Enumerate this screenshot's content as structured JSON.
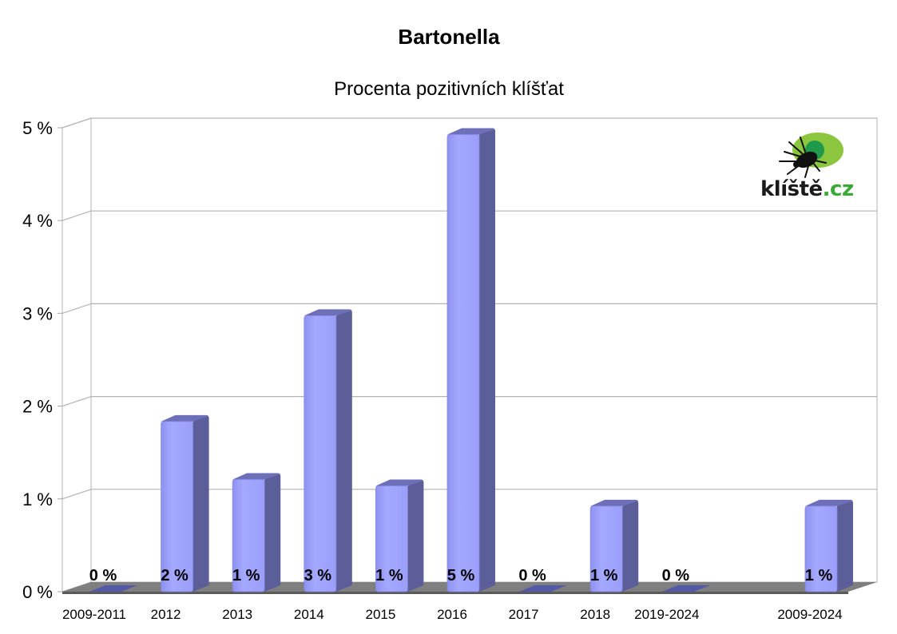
{
  "chart_data": {
    "type": "bar",
    "title": "Bartonella",
    "subtitle": "Procenta pozitivních klíšťat",
    "categories": [
      "2009-2011",
      "2012",
      "2013",
      "2014",
      "2015",
      "2016",
      "2017",
      "2018",
      "2019-2024",
      "",
      "2009-2024"
    ],
    "values": [
      0,
      1.85,
      1.22,
      3.0,
      1.15,
      4.97,
      0,
      0.93,
      0,
      null,
      0.93
    ],
    "data_labels": [
      "0 %",
      "2 %",
      "1 %",
      "3 %",
      "1 %",
      "5 %",
      "0 %",
      "1 %",
      "0 %",
      "",
      "1 %"
    ],
    "yticks": [
      "0 %",
      "1 %",
      "2 %",
      "3 %",
      "4 %",
      "5 %"
    ],
    "ylim": [
      0,
      5
    ],
    "grid": true,
    "bar_color": "#a0a4ff",
    "bar_side_color": "#5c5e9a",
    "floor_color": "#7f7f7f"
  },
  "logo": {
    "text_part1": "klíště",
    "text_part2": ".cz"
  }
}
